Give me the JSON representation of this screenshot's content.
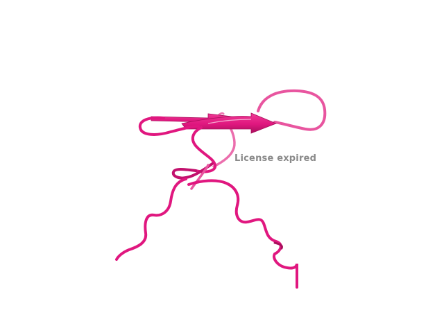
{
  "viewer": {
    "watermark_text": "License expired",
    "structure_style": "cartoon",
    "colors": {
      "background": "#ffffff",
      "chain_main": "#e0177f",
      "chain_light": "#e8559f",
      "chain_dark": "#a80f5c",
      "watermark": "#8a8a8a"
    }
  }
}
